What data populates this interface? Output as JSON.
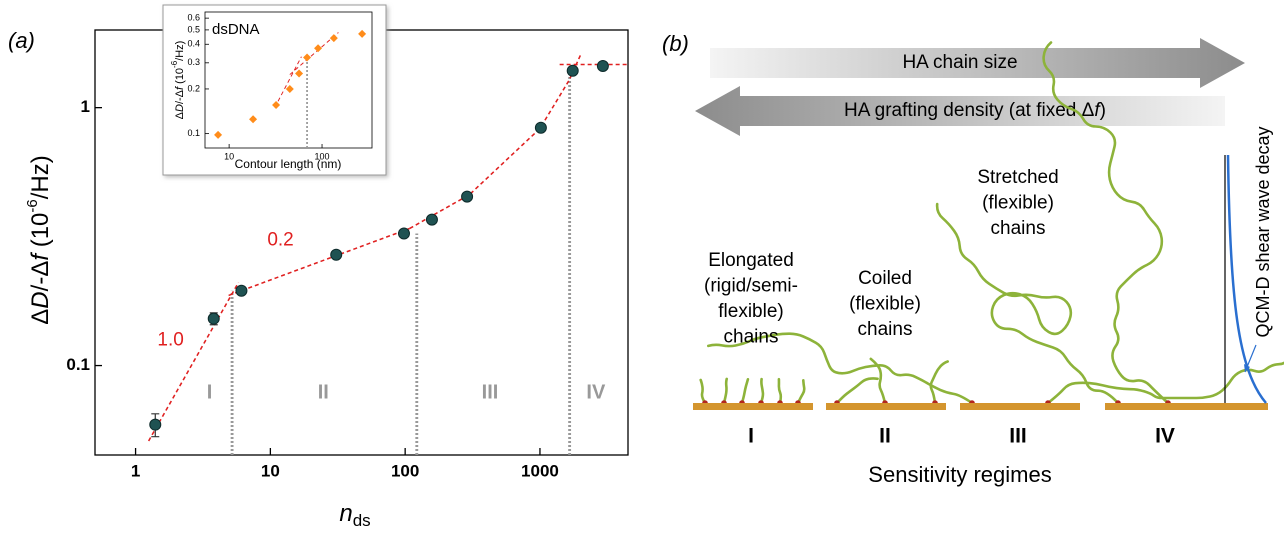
{
  "chart_data": [
    {
      "type": "scatter",
      "title": "(a)",
      "x_label": [
        "n",
        "ds"
      ],
      "y_label": [
        "Δ",
        "D",
        "/-Δ",
        "f",
        " (10",
        "-6",
        "/Hz)"
      ],
      "x": [
        1.4,
        3.8,
        6.1,
        30.8,
        98,
        158,
        288,
        1016,
        1750,
        2930
      ],
      "values": [
        0.059,
        0.152,
        0.195,
        0.269,
        0.325,
        0.368,
        0.452,
        0.836,
        1.39,
        1.45
      ],
      "errors": [
        0.006,
        0.008,
        null,
        null,
        null,
        null,
        null,
        null,
        null,
        null
      ],
      "color": "#1f5252",
      "xlim": [
        0.5,
        4500
      ],
      "ylim": [
        0.045,
        2
      ],
      "xticks": [
        1,
        10,
        100,
        1000
      ],
      "yticks": [
        0.1,
        1
      ],
      "log_x": true,
      "log_y": true,
      "fit_color": "#e02020",
      "fits": [
        {
          "x": [
            1.25,
            5.8
          ],
          "y": [
            0.051,
            0.21
          ]
        },
        {
          "x": [
            4.9,
            108
          ],
          "y": [
            0.187,
            0.34
          ]
        },
        {
          "x": [
            108,
            300,
            1000,
            1650,
            2000
          ],
          "y": [
            0.34,
            0.46,
            0.83,
            1.28,
            1.6
          ]
        },
        {
          "x": [
            1400,
            4500
          ],
          "y": [
            1.47,
            1.47
          ]
        }
      ],
      "boundaries": {
        "x": [
          5.2,
          122,
          1660
        ],
        "y": [
          0.195,
          0.325,
          1.39
        ]
      },
      "annotations": [
        {
          "text": "1.0",
          "x": 1.82,
          "y": 0.125
        },
        {
          "text": "0.2",
          "x": 11.9,
          "y": 0.305
        }
      ],
      "regions": {
        "labels": [
          "I",
          "II",
          "III",
          "IV"
        ],
        "x": [
          3.54,
          24.7,
          426,
          2600
        ],
        "y": 0.078
      }
    },
    {
      "type": "scatter",
      "title": "dsDNA",
      "x_label": "Contour length (nm)",
      "y_label": [
        "Δ",
        "D",
        "/-Δ",
        "f",
        " (10",
        "-6",
        "/Hz)"
      ],
      "x": [
        7.6,
        18.1,
        32,
        45,
        56.6,
        69,
        90.6,
        134,
        270
      ],
      "values": [
        0.098,
        0.125,
        0.156,
        0.2,
        0.254,
        0.326,
        0.376,
        0.44,
        0.47
      ],
      "color": "#ff8c1a",
      "xlim": [
        5.5,
        345
      ],
      "ylim": [
        0.08,
        0.66
      ],
      "xticks": [
        10,
        100
      ],
      "yticks": [
        0.1,
        0.2,
        0.3,
        0.4,
        0.5,
        0.6
      ],
      "log_x": true,
      "log_y": true,
      "fit_color": "#e02020",
      "fits": [
        {
          "x": [
            31,
            60
          ],
          "y": [
            0.15,
            0.33
          ]
        },
        {
          "x": [
            45,
            150
          ],
          "y": [
            0.25,
            0.48
          ]
        }
      ],
      "boundaries": {
        "x": [
          69
        ],
        "y": [
          0.326
        ]
      }
    }
  ],
  "panel_b": {
    "label": "(b)",
    "arrow_1": "HA chain size",
    "arrow_2": [
      "HA grafting density (at fixed Δ",
      "f",
      ")"
    ],
    "decay_label": "QCM-D shear wave decay",
    "regimes": [
      {
        "numeral": "I",
        "description": [
          "Elongated",
          "(rigid/semi-",
          "flexible)",
          "chains"
        ]
      },
      {
        "numeral": "II",
        "description": [
          "Coiled",
          "(flexible)",
          "chains"
        ]
      },
      {
        "numeral": "III",
        "description": []
      },
      {
        "numeral": "IV",
        "description": [
          "Stretched",
          "(flexible)",
          "chains"
        ]
      }
    ],
    "footer": "Sensitivity regimes"
  }
}
